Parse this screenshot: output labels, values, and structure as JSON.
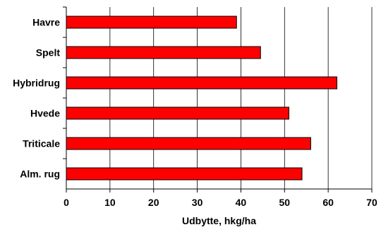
{
  "chart_data": {
    "type": "bar",
    "orientation": "horizontal",
    "title": "",
    "xlabel": "Udbytte, hkg/ha",
    "ylabel": "",
    "categories": [
      "Havre",
      "Spelt",
      "Hybridrug",
      "Hvede",
      "Triticale",
      "Alm. rug"
    ],
    "values": [
      39,
      44.5,
      62,
      51,
      56,
      54
    ],
    "xlim": [
      0,
      70
    ],
    "xticks": [
      0,
      10,
      20,
      30,
      40,
      50,
      60,
      70
    ],
    "grid": true,
    "legend": "none",
    "colors": {
      "bar_fill": "#ff0000",
      "bar_stroke": "#000000",
      "grid": "#000000"
    }
  }
}
